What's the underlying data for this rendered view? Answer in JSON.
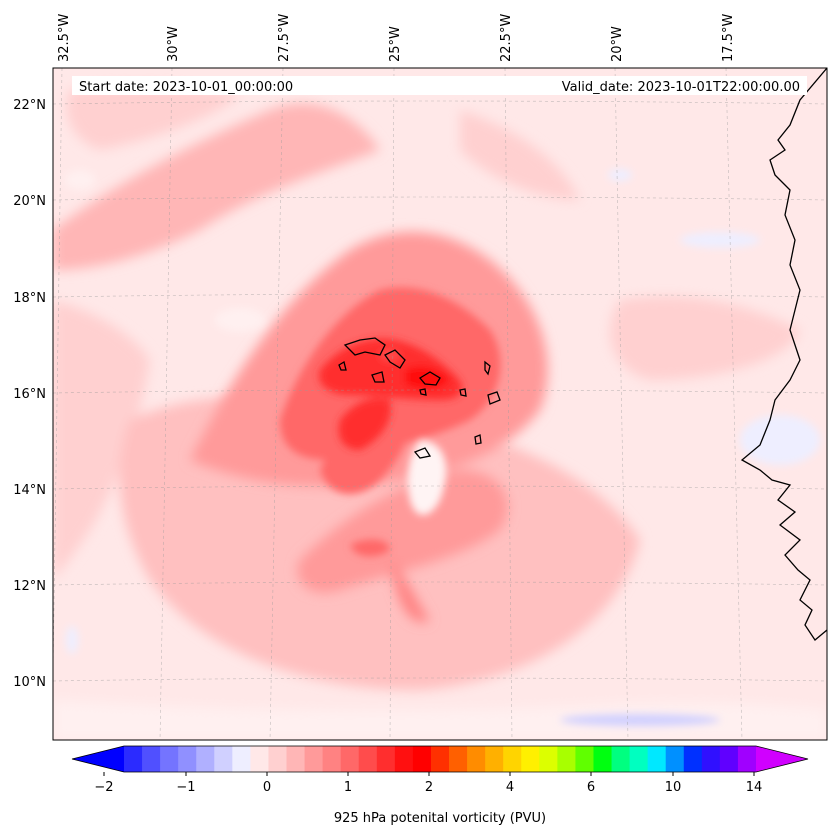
{
  "map": {
    "start_date": "Start date: 2023-10-01_00:00:00",
    "valid_date": "Valid_date: 2023-10-01T22:00:00.00",
    "lon_labels": [
      "32.5°W",
      "30°W",
      "27.5°W",
      "25°W",
      "22.5°W",
      "20°W",
      "17.5°W"
    ],
    "lat_labels": [
      "22°N",
      "20°N",
      "18°N",
      "16°N",
      "14°N",
      "12°N",
      "10°N"
    ],
    "colorbar": {
      "label": "925 hPa potenital vorticity (PVU)",
      "tick_labels": [
        "−2",
        "−1",
        "0",
        "1",
        "2",
        "4",
        "6",
        "10",
        "14"
      ],
      "colors": [
        "#0000ff",
        "#2b2bff",
        "#5050ff",
        "#7474ff",
        "#9090ff",
        "#b0b0ff",
        "#d0d0ff",
        "#eeeeff",
        "#ffe8e8",
        "#ffd0d0",
        "#ffb6b6",
        "#ff9a9a",
        "#ff8282",
        "#ff6868",
        "#ff4c4c",
        "#ff2e2e",
        "#ff1010",
        "#ff0000",
        "#ff3000",
        "#ff6000",
        "#ff8c00",
        "#ffb000",
        "#ffd400",
        "#fff000",
        "#dcff00",
        "#a8ff00",
        "#60ff00",
        "#00ff10",
        "#00ff80",
        "#00ffc0",
        "#00e8ff",
        "#0090ff",
        "#0030ff",
        "#3010ff",
        "#6000ff",
        "#a000ff",
        "#d000ff"
      ]
    }
  }
}
